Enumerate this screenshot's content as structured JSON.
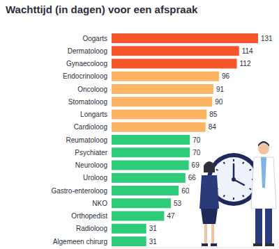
{
  "chart_data": {
    "type": "bar",
    "title": "Wachttijd (in dagen) voor een afspraak",
    "orientation": "horizontal",
    "categories": [
      "Oogarts",
      "Dermatoloog",
      "Gynaecoloog",
      "Endocrinoloog",
      "Oncoloog",
      "Stomatoloog",
      "Longarts",
      "Cardioloog",
      "Reumatoloog",
      "Psychiater",
      "Neuroloog",
      "Uroloog",
      "Gastro-enteroloog",
      "NKO",
      "Orthopedist",
      "Radioloog",
      "Algemeen chirurg"
    ],
    "values": [
      131,
      114,
      112,
      96,
      91,
      90,
      85,
      84,
      70,
      70,
      69,
      66,
      60,
      53,
      47,
      31,
      31
    ],
    "colors": [
      "#f4562a",
      "#f4562a",
      "#f4562a",
      "#fdb462",
      "#fdb462",
      "#fdb462",
      "#fdb462",
      "#fdb462",
      "#2ecb78",
      "#2ecb78",
      "#2ecb78",
      "#2ecb78",
      "#2ecb78",
      "#2ecb78",
      "#2ecb78",
      "#2ecb78",
      "#2ecb78"
    ],
    "xlim": [
      0,
      131
    ],
    "data_labels": true,
    "tick_labels": "y",
    "grid": false
  }
}
